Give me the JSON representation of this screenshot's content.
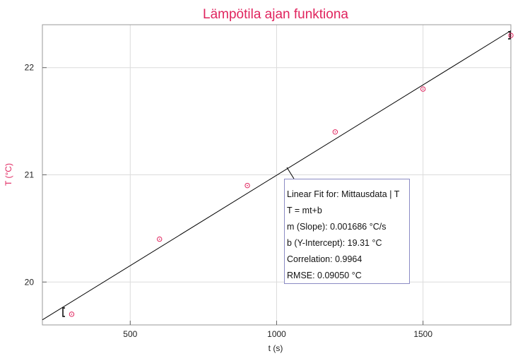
{
  "chart_data": {
    "type": "scatter",
    "title": "Lämpötila ajan funktiona",
    "x_label": "t (s)",
    "y_label": "T (°C)",
    "x": [
      300,
      600,
      900,
      1200,
      1500,
      1800
    ],
    "series": [
      {
        "name": "Mittausdata",
        "color": "#e0245e",
        "values": [
          19.7,
          20.4,
          20.9,
          21.4,
          21.8,
          22.3
        ]
      }
    ],
    "fit": {
      "slope": 0.001686,
      "intercept": 19.31,
      "color": "#000000"
    },
    "annotation": [
      "Linear Fit for: Mittausdata | T",
      "T = mt+b",
      "m (Slope): 0.001686 °C/s",
      "b (Y-Intercept): 19.31 °C",
      "Correlation: 0.9964",
      "RMSE: 0.09050 °C"
    ],
    "xlim": [
      200,
      1800
    ],
    "ylim": [
      19.6,
      22.4
    ],
    "xticks": [
      500,
      1000,
      1500
    ],
    "yticks": [
      20,
      21,
      22
    ],
    "grid": true
  }
}
